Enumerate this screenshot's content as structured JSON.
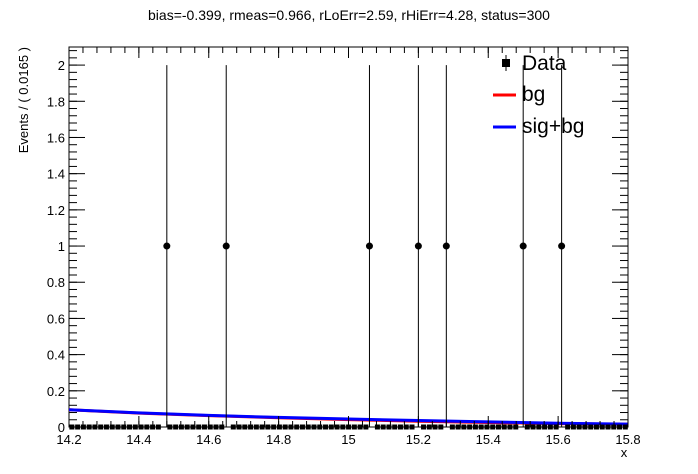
{
  "chart_data": {
    "type": "scatter",
    "title": "bias=-0.399, rmeas=0.966, rLoErr=2.59, rHiErr=4.28, status=300",
    "xlabel": "x",
    "ylabel": "Events / ( 0.0165 )",
    "xlim": [
      14.2,
      15.8
    ],
    "ylim": [
      0,
      2.1
    ],
    "x_ticks": [
      "14.2",
      "14.4",
      "14.6",
      "14.8",
      "15",
      "15.2",
      "15.4",
      "15.6",
      "15.8"
    ],
    "y_ticks": [
      "0",
      "0.2",
      "0.4",
      "0.6",
      "0.8",
      "1",
      "1.2",
      "1.4",
      "1.6",
      "1.8",
      "2"
    ],
    "bin_width": 0.0165,
    "data": {
      "name": "Data",
      "x": [
        14.48,
        14.65,
        15.06,
        15.2,
        15.28,
        15.5,
        15.61
      ],
      "y": [
        1,
        1,
        1,
        1,
        1,
        1,
        1
      ],
      "y_err_high": [
        1,
        1,
        1,
        1,
        1,
        1,
        1
      ],
      "y_err_low": [
        1,
        1,
        1,
        1,
        1,
        1,
        1
      ]
    },
    "series": [
      {
        "name": "bg",
        "color": "#ff0000",
        "x": [
          14.2,
          14.4,
          14.6,
          14.8,
          15.0,
          15.2,
          15.4,
          15.6,
          15.8
        ],
        "y": [
          0.095,
          0.077,
          0.063,
          0.051,
          0.041,
          0.032,
          0.025,
          0.019,
          0.015
        ]
      },
      {
        "name": "sig+bg",
        "color": "#0000ff",
        "x": [
          14.2,
          14.4,
          14.6,
          14.8,
          15.0,
          15.2,
          15.4,
          15.6,
          15.8
        ],
        "y": [
          0.095,
          0.078,
          0.064,
          0.053,
          0.044,
          0.036,
          0.028,
          0.021,
          0.016
        ]
      }
    ],
    "legend": {
      "placement": "top-right",
      "entries": [
        "Data",
        "bg",
        "sig+bg"
      ]
    },
    "grid": false
  }
}
